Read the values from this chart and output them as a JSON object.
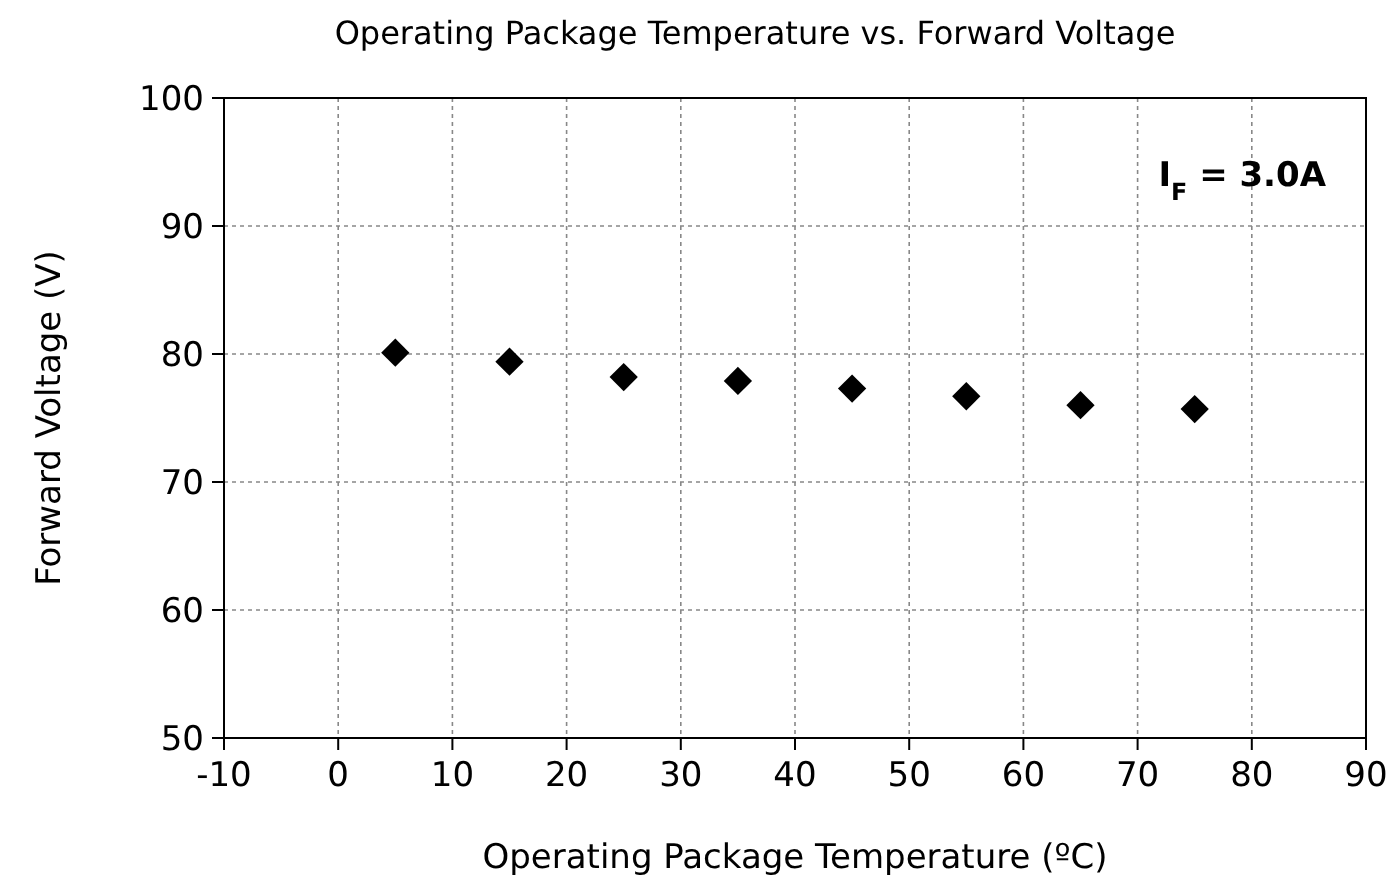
{
  "chart_data": {
    "type": "scatter",
    "title": "Operating Package Temperature  vs. Forward Voltage",
    "xlabel": "Operating Package Temperature (ºC)",
    "ylabel": "Forward Voltage (V)",
    "x": [
      5,
      15,
      25,
      35,
      45,
      55,
      65,
      75
    ],
    "series": [
      {
        "color": "#000000",
        "values": [
          80.1,
          79.4,
          78.2,
          77.9,
          77.3,
          76.7,
          76.0,
          75.7
        ]
      }
    ],
    "xlim": [
      -10,
      90
    ],
    "xticks": [
      -10,
      0,
      10,
      20,
      30,
      40,
      50,
      60,
      70,
      80,
      90
    ],
    "ylim": [
      50,
      100
    ],
    "yticks": [
      50,
      60,
      70,
      80,
      90,
      100
    ],
    "grid": true,
    "marker": "diamond",
    "annotations": [
      "I$_{F}$ = 3.0A"
    ]
  }
}
